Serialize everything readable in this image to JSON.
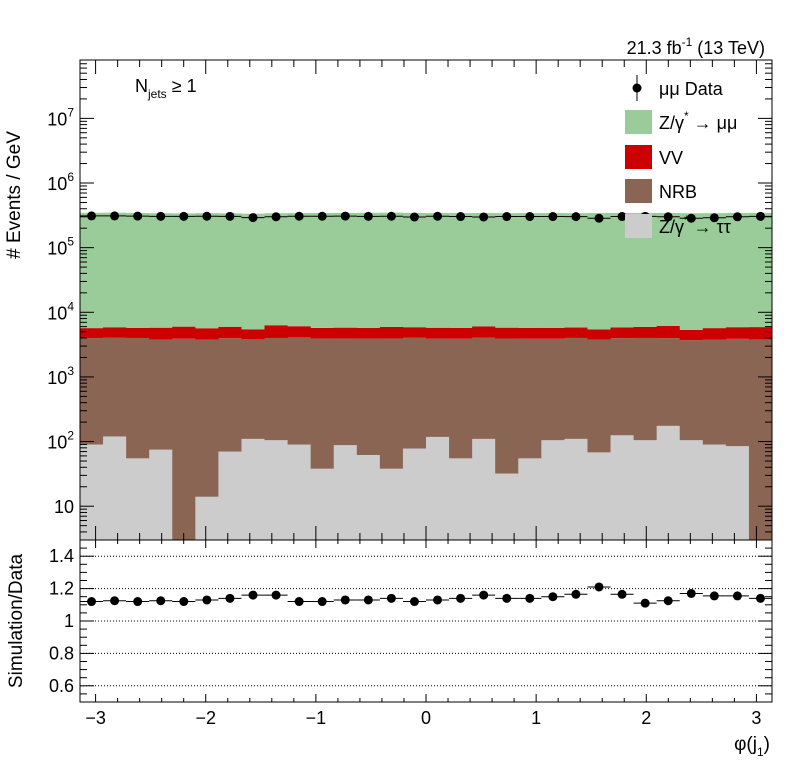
{
  "chart_data": [
    {
      "type": "bar",
      "stacked": true,
      "ylabel": "# Events / GeV",
      "yscale": "log",
      "ylim": [
        3,
        80000000
      ],
      "xlim": [
        -3.14159,
        3.14159
      ],
      "xlabel": "",
      "annotations": {
        "lumi_main": "21.3 fb",
        "lumi_sup": "-1",
        "lumi_tail": " (13 TeV)",
        "sel_main": "N",
        "sel_sub": "jets",
        "sel_tail": " ≥ 1"
      },
      "y_tick_labels": [
        {
          "value": 10,
          "base": "10",
          "exp": ""
        },
        {
          "value": 100,
          "base": "10",
          "exp": "2"
        },
        {
          "value": 1000,
          "base": "10",
          "exp": "3"
        },
        {
          "value": 10000,
          "base": "10",
          "exp": "4"
        },
        {
          "value": 100000,
          "base": "10",
          "exp": "5"
        },
        {
          "value": 1000000,
          "base": "10",
          "exp": "6"
        },
        {
          "value": 10000000,
          "base": "10",
          "exp": "7"
        }
      ],
      "legend_position": "top-right",
      "legend": [
        {
          "key": "data",
          "main": "μμ Data",
          "sup": "",
          "tail": ""
        },
        {
          "key": "zmm",
          "main": "Z/γ",
          "sup": "*",
          "tail": " → μμ"
        },
        {
          "key": "vv",
          "main": "VV",
          "sup": "",
          "tail": ""
        },
        {
          "key": "nrb",
          "main": "NRB",
          "sup": "",
          "tail": ""
        },
        {
          "key": "ztt",
          "main": "Z/γ",
          "sup": "*",
          "tail": " → ττ"
        }
      ],
      "colors": {
        "zmm": "#99cc99",
        "vv": "#cc0000",
        "nrb": "#8b6554",
        "ztt": "#cccccc",
        "data": "#000000"
      },
      "nbins": 30,
      "series": [
        {
          "key": "ztt",
          "values": [
            90,
            120,
            55,
            75,
            0,
            14,
            70,
            110,
            105,
            90,
            38,
            88,
            62,
            38,
            78,
            118,
            55,
            110,
            32,
            55,
            105,
            110,
            68,
            125,
            105,
            175,
            105,
            90,
            85,
            0
          ]
        },
        {
          "key": "nrb",
          "values": [
            3900,
            3950,
            3950,
            3700,
            3900,
            3750,
            3900,
            3700,
            3900,
            4000,
            3900,
            3850,
            3850,
            3900,
            3950,
            3800,
            3850,
            3950,
            3900,
            3850,
            3800,
            3900,
            3700,
            3850,
            3900,
            3800,
            3600,
            3700,
            3800,
            3800
          ]
        },
        {
          "key": "vv",
          "values": [
            1700,
            1800,
            1750,
            2000,
            2100,
            1900,
            2000,
            1650,
            2300,
            2000,
            1800,
            1850,
            1800,
            2000,
            1850,
            1850,
            1850,
            2000,
            1850,
            1850,
            1850,
            1800,
            1650,
            1850,
            1950,
            2200,
            1650,
            1900,
            2000,
            2100
          ]
        },
        {
          "key": "zmm",
          "values": [
            340000,
            342000,
            338000,
            335000,
            333000,
            336000,
            334000,
            330000,
            334000,
            337000,
            338000,
            338000,
            340000,
            342000,
            338000,
            337000,
            337000,
            337000,
            336000,
            337000,
            337000,
            336000,
            338000,
            338000,
            338000,
            338000,
            336000,
            336000,
            337000,
            339000
          ]
        }
      ],
      "data": [
        310000,
        310000,
        308000,
        305000,
        305000,
        306000,
        305000,
        292000,
        300000,
        306000,
        306000,
        308000,
        305000,
        306000,
        298000,
        306000,
        303000,
        298000,
        303000,
        303000,
        303000,
        302000,
        285000,
        303000,
        305000,
        300000,
        285000,
        290000,
        300000,
        305000
      ]
    },
    {
      "type": "scatter",
      "ylabel": "Simulation/Data",
      "xlabel_main": "φ(j",
      "xlabel_sub": "1",
      "xlabel_tail": ")",
      "ylim": [
        0.5,
        1.5
      ],
      "y_ticks": [
        0.6,
        0.8,
        1,
        1.2,
        1.4
      ],
      "y_tick_labels": [
        "0.6",
        "0.8",
        "1",
        "1.2",
        "1.4"
      ],
      "gridlines": [
        0.6,
        0.8,
        1.0,
        1.2,
        1.4
      ],
      "x_ticks": [
        -3,
        -2,
        -1,
        0,
        1,
        2,
        3
      ],
      "x_tick_labels": [
        "−3",
        "−2",
        "−1",
        "0",
        "1",
        "2",
        "3"
      ],
      "ratio": [
        1.12,
        1.125,
        1.12,
        1.125,
        1.12,
        1.13,
        1.14,
        1.16,
        1.16,
        1.12,
        1.12,
        1.13,
        1.13,
        1.14,
        1.12,
        1.13,
        1.14,
        1.16,
        1.14,
        1.14,
        1.15,
        1.165,
        1.21,
        1.165,
        1.11,
        1.125,
        1.17,
        1.155,
        1.155,
        1.14
      ]
    }
  ]
}
